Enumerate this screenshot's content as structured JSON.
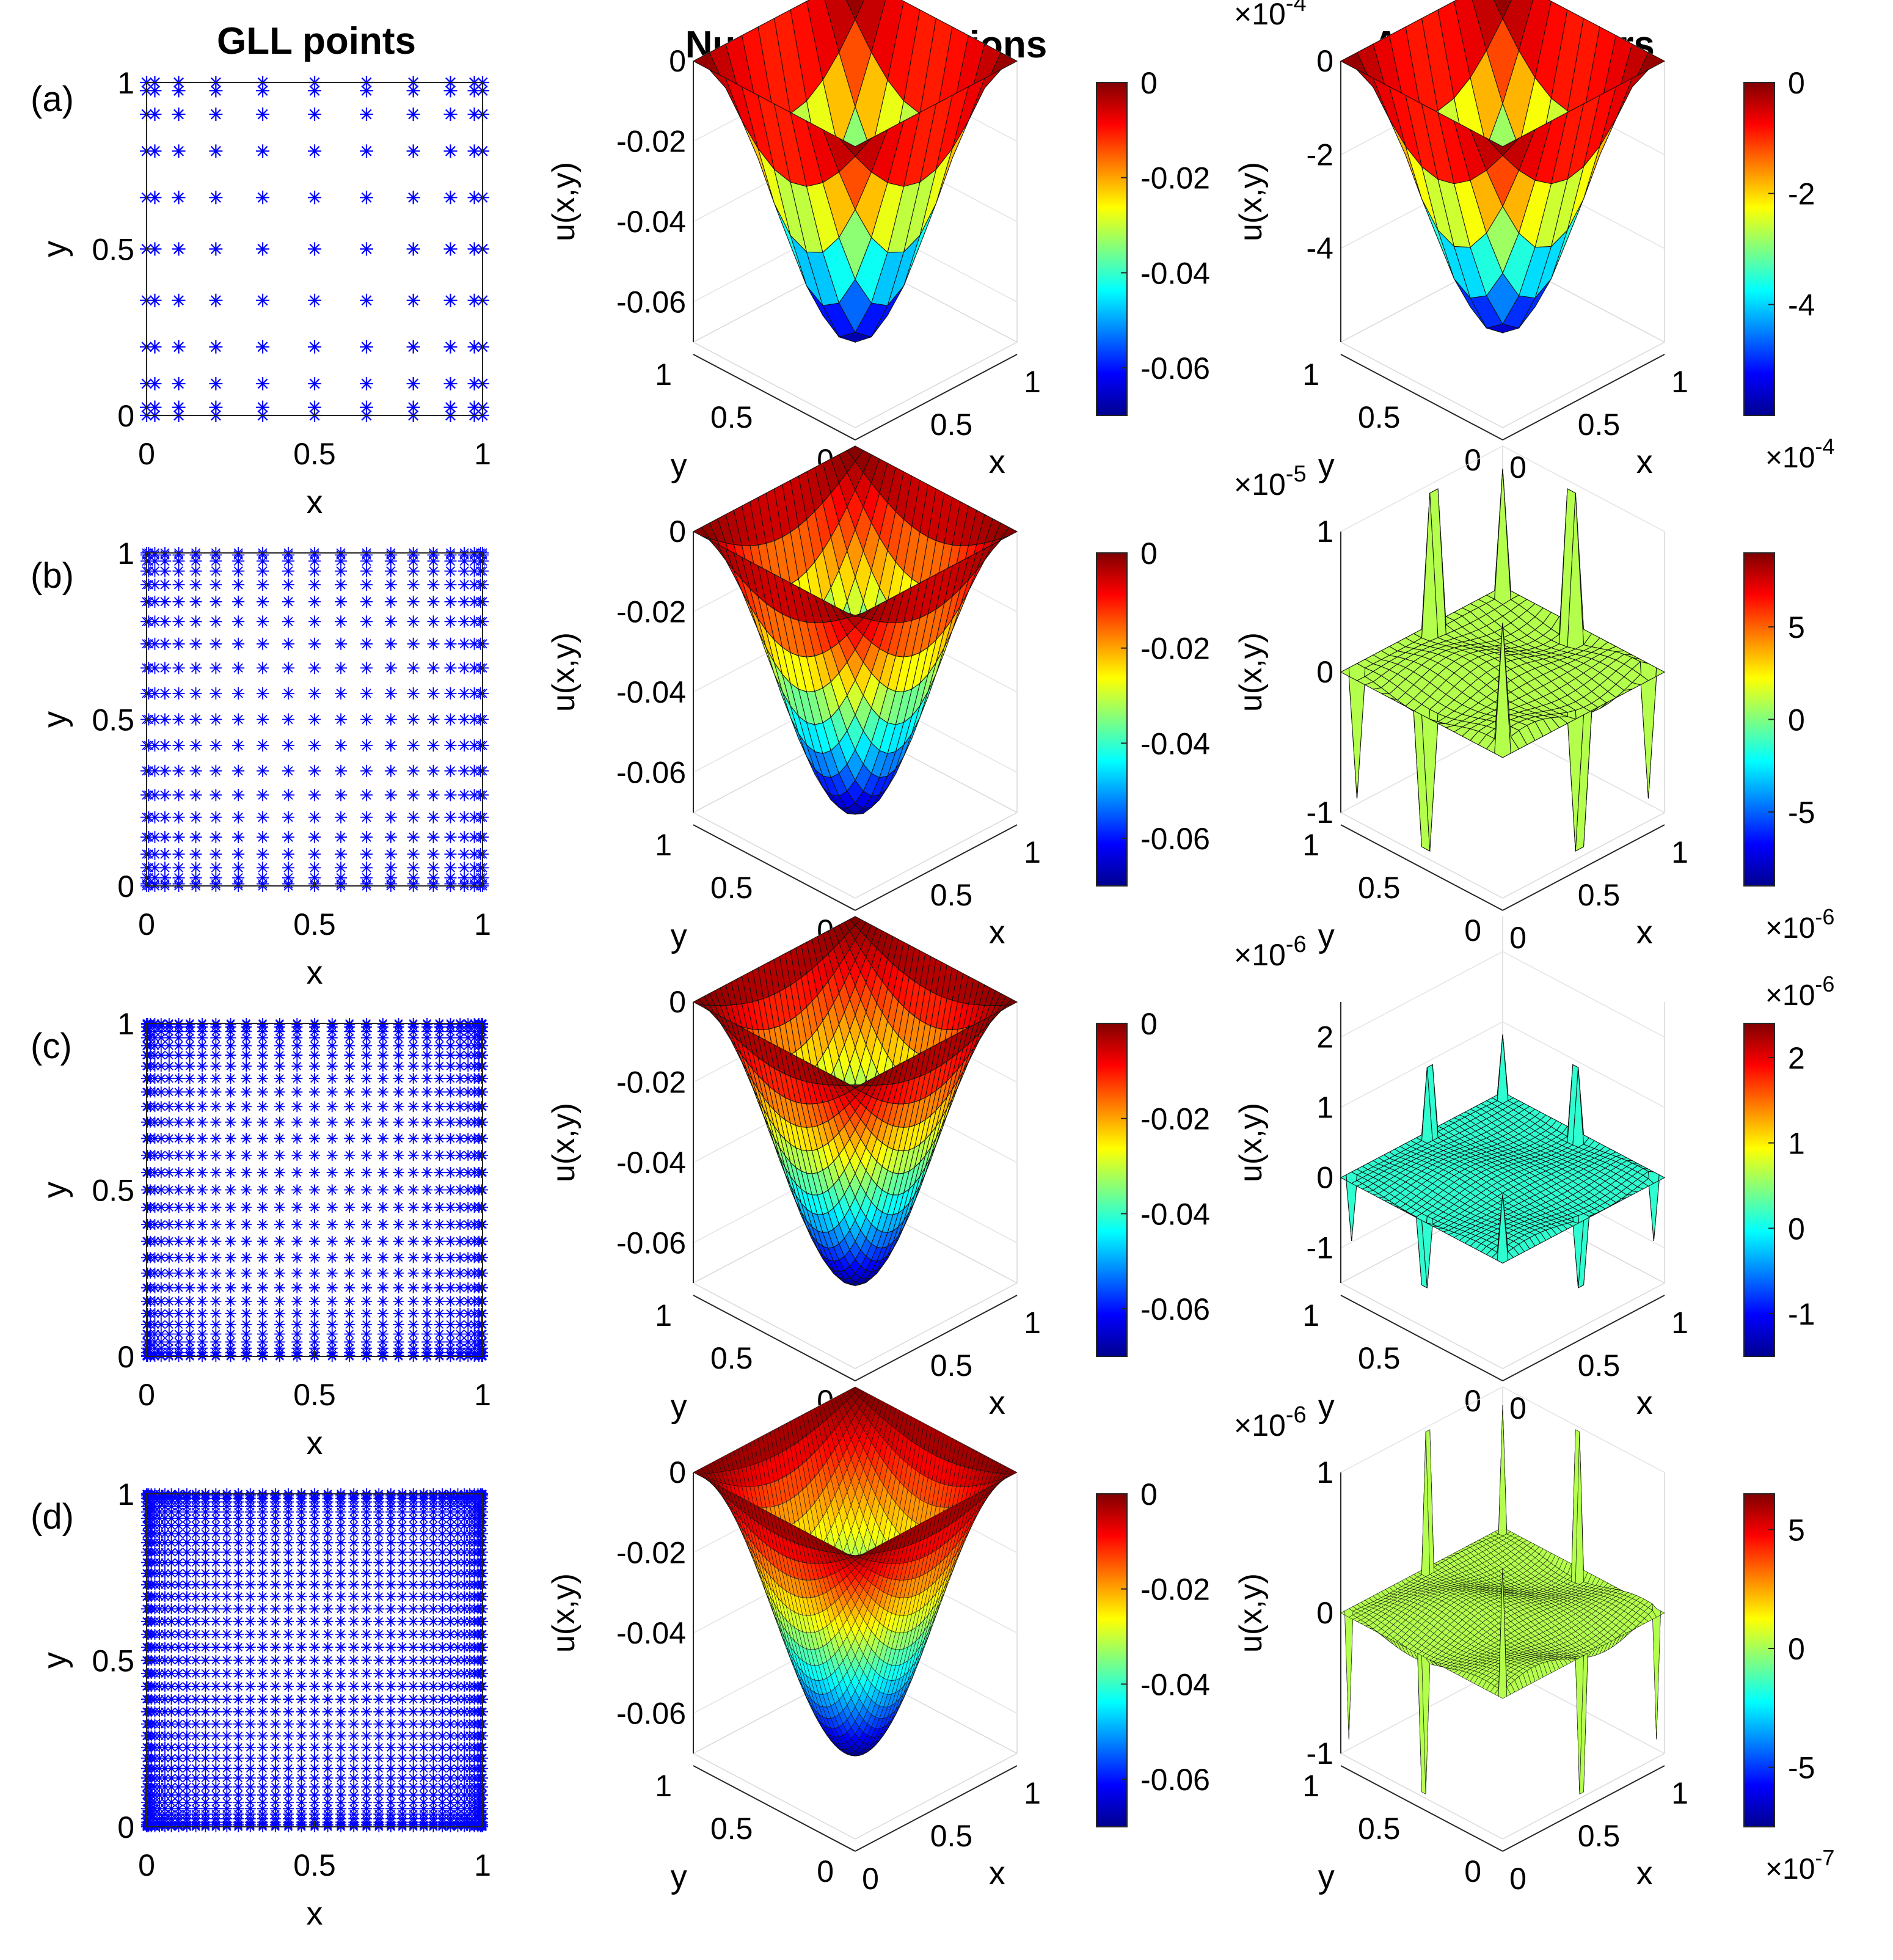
{
  "figure": {
    "columns": [
      {
        "title": "GLL points"
      },
      {
        "title": "Numerical solutions"
      },
      {
        "title": "Absolute errors"
      }
    ],
    "rows": [
      {
        "label": "(a)",
        "grid_n": 11
      },
      {
        "label": "(b)",
        "grid_n": 21
      },
      {
        "label": "(c)",
        "grid_n": 31
      },
      {
        "label": "(d)",
        "grid_n": 41
      }
    ]
  },
  "chart_data": [
    {
      "type": "scatter",
      "panel": "a-points",
      "title": "GLL points",
      "xlabel": "x",
      "ylabel": "y",
      "xticks": [
        "0",
        "0.5",
        "1"
      ],
      "yticks": [
        "0",
        "0.5",
        "1"
      ],
      "marker": "*",
      "color": "#0000ff",
      "grid_n": 11,
      "xlim": [
        0,
        1
      ],
      "ylim": [
        0,
        1
      ]
    },
    {
      "type": "scatter",
      "panel": "b-points",
      "xlabel": "x",
      "ylabel": "y",
      "xticks": [
        "0",
        "0.5",
        "1"
      ],
      "yticks": [
        "0",
        "0.5",
        "1"
      ],
      "marker": "*",
      "color": "#0000ff",
      "grid_n": 21,
      "xlim": [
        0,
        1
      ],
      "ylim": [
        0,
        1
      ]
    },
    {
      "type": "scatter",
      "panel": "c-points",
      "xlabel": "x",
      "ylabel": "y",
      "xticks": [
        "0",
        "0.5",
        "1"
      ],
      "yticks": [
        "0",
        "0.5",
        "1"
      ],
      "marker": "*",
      "color": "#0000ff",
      "grid_n": 31,
      "xlim": [
        0,
        1
      ],
      "ylim": [
        0,
        1
      ]
    },
    {
      "type": "scatter",
      "panel": "d-points",
      "xlabel": "x",
      "ylabel": "y",
      "xticks": [
        "0",
        "0.5",
        "1"
      ],
      "yticks": [
        "0",
        "0.5",
        "1"
      ],
      "marker": "*",
      "color": "#0000ff",
      "grid_n": 41,
      "xlim": [
        0,
        1
      ],
      "ylim": [
        0,
        1
      ]
    },
    {
      "type": "surface",
      "panel": "a-solution",
      "title": "Numerical solutions",
      "zlabel": "u(x,y)",
      "xlabel": "x",
      "ylabel": "y",
      "zlim": [
        -0.07,
        0
      ],
      "zticks": [
        "0",
        "-0.02",
        "-0.04",
        "-0.06"
      ],
      "xticks": [
        "0",
        "0.5",
        "1"
      ],
      "yticks": [
        "0",
        "0.5",
        "1"
      ],
      "grid_n": 11,
      "colorbar": {
        "range": [
          -0.07,
          0
        ],
        "ticks": [
          "0",
          "-0.02",
          "-0.04",
          "-0.06"
        ],
        "exponent": ""
      }
    },
    {
      "type": "surface",
      "panel": "b-solution",
      "zlabel": "u(x,y)",
      "xlabel": "x",
      "ylabel": "y",
      "zlim": [
        -0.07,
        0
      ],
      "zticks": [
        "0",
        "-0.02",
        "-0.04",
        "-0.06"
      ],
      "xticks": [
        "0",
        "0.5",
        "1"
      ],
      "yticks": [
        "0",
        "0.5",
        "1"
      ],
      "grid_n": 21,
      "colorbar": {
        "range": [
          -0.07,
          0
        ],
        "ticks": [
          "0",
          "-0.02",
          "-0.04",
          "-0.06"
        ],
        "exponent": ""
      }
    },
    {
      "type": "surface",
      "panel": "c-solution",
      "zlabel": "u(x,y)",
      "xlabel": "x",
      "ylabel": "y",
      "zlim": [
        -0.07,
        0
      ],
      "zticks": [
        "0",
        "-0.02",
        "-0.04",
        "-0.06"
      ],
      "xticks": [
        "0",
        "0.5",
        "1"
      ],
      "yticks": [
        "0",
        "0.5",
        "1"
      ],
      "grid_n": 31,
      "colorbar": {
        "range": [
          -0.07,
          0
        ],
        "ticks": [
          "0",
          "-0.02",
          "-0.04",
          "-0.06"
        ],
        "exponent": ""
      }
    },
    {
      "type": "surface",
      "panel": "d-solution",
      "zlabel": "u(x,y)",
      "xlabel": "x",
      "ylabel": "y",
      "zlim": [
        -0.07,
        0
      ],
      "zticks": [
        "0",
        "-0.02",
        "-0.04",
        "-0.06"
      ],
      "xticks": [
        "0",
        "0.5",
        "1"
      ],
      "yticks": [
        "0",
        "0.5",
        "1"
      ],
      "grid_n": 41,
      "colorbar": {
        "range": [
          -0.07,
          0
        ],
        "ticks": [
          "0",
          "-0.02",
          "-0.04",
          "-0.06"
        ],
        "exponent": ""
      }
    },
    {
      "type": "surface",
      "panel": "a-error",
      "title": "Absolute errors",
      "zlabel": "u(x,y)",
      "xlabel": "x",
      "ylabel": "y",
      "z_exponent": "-4",
      "zlim": [
        -6,
        0
      ],
      "zticks": [
        "0",
        "-2",
        "-4"
      ],
      "xticks": [
        "0",
        "0.5",
        "1"
      ],
      "yticks": [
        "0",
        "0.5",
        "1"
      ],
      "grid_n": 11,
      "colorbar": {
        "range": [
          -6,
          0
        ],
        "ticks": [
          "0",
          "-2",
          "-4"
        ],
        "exponent": "-4",
        "exponent_position": "bottom"
      }
    },
    {
      "type": "surface",
      "panel": "b-error",
      "zlabel": "u(x,y)",
      "xlabel": "x",
      "ylabel": "y",
      "z_exponent": "-5",
      "zlim": [
        -1,
        1
      ],
      "zticks": [
        "1",
        "0",
        "-1"
      ],
      "xticks": [
        "0",
        "0.5",
        "1"
      ],
      "yticks": [
        "0",
        "0.5",
        "1"
      ],
      "grid_n": 21,
      "colorbar": {
        "range": [
          -9,
          9
        ],
        "ticks": [
          "5",
          "0",
          "-5"
        ],
        "exponent": "-6",
        "exponent_position": "bottom"
      }
    },
    {
      "type": "surface",
      "panel": "c-error",
      "zlabel": "u(x,y)",
      "xlabel": "x",
      "ylabel": "y",
      "z_exponent": "-6",
      "zlim": [
        -1.5,
        2.5
      ],
      "zticks": [
        "2",
        "1",
        "0",
        "-1"
      ],
      "xticks": [
        "0",
        "0.5",
        "1"
      ],
      "yticks": [
        "0",
        "0.5",
        "1"
      ],
      "grid_n": 31,
      "colorbar": {
        "range": [
          -1.5,
          2.4
        ],
        "ticks": [
          "2",
          "1",
          "0",
          "-1"
        ],
        "exponent": "-6",
        "exponent_position": "top"
      }
    },
    {
      "type": "surface",
      "panel": "d-error",
      "zlabel": "u(x,y)",
      "xlabel": "x",
      "ylabel": "y",
      "z_exponent": "-6",
      "zlim": [
        -1,
        1
      ],
      "zticks": [
        "1",
        "0",
        "-1"
      ],
      "xticks": [
        "0",
        "0.5",
        "1"
      ],
      "yticks": [
        "0",
        "0.5",
        "1"
      ],
      "grid_n": 41,
      "colorbar": {
        "range": [
          -7.5,
          6.5
        ],
        "ticks": [
          "5",
          "0",
          "-5"
        ],
        "exponent": "-7",
        "exponent_position": "bottom"
      }
    }
  ]
}
